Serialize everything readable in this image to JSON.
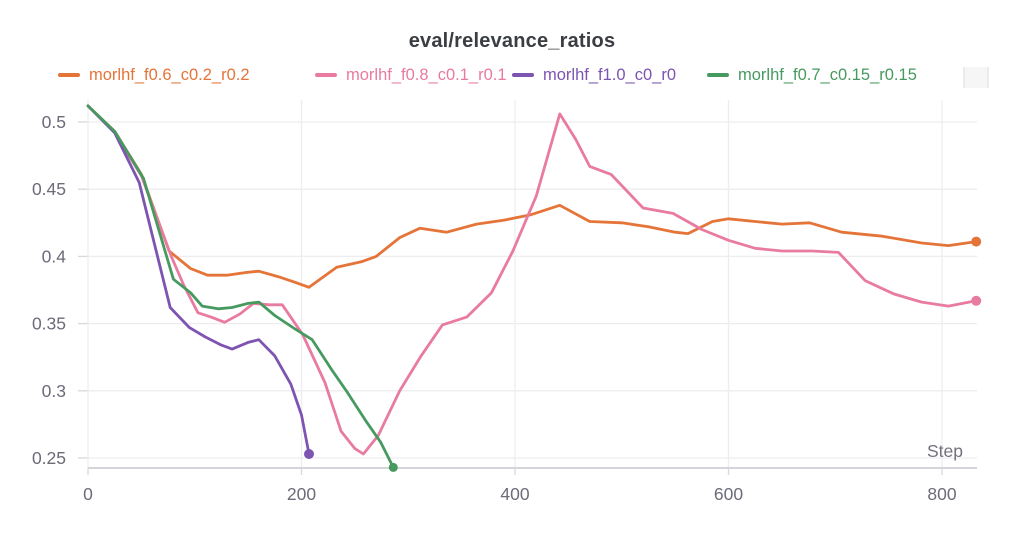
{
  "panel": {
    "title": "eval/relevance_ratios",
    "x_axis_label": "Step"
  },
  "axes": {
    "x_ticks": [
      0,
      200,
      400,
      600,
      800
    ],
    "y_ticks": [
      0.25,
      0.3,
      0.35,
      0.4,
      0.45,
      0.5
    ]
  },
  "colors": {
    "title_text": "#3a3d42",
    "tick_text": "#6b6c78",
    "axis_label_text": "#71727c",
    "gridline": "#ededf0",
    "tick_mark": "#d8d8dd",
    "axis_line": "#d4d4d9",
    "background": "#ffffff"
  },
  "chart_data": {
    "type": "line",
    "title": "eval/relevance_ratios",
    "xlabel": "Step",
    "ylabel": "",
    "xlim": [
      0,
      838
    ],
    "ylim": [
      0.2425,
      0.516
    ],
    "x_ticks": [
      0,
      200,
      400,
      600,
      800
    ],
    "y_ticks": [
      0.25,
      0.3,
      0.35,
      0.4,
      0.45,
      0.5
    ],
    "grid": true,
    "legend_position": "top",
    "series": [
      {
        "name": "morlhf_f0.6_c0.2_r0.2",
        "color": "#E57439",
        "end_dot": true,
        "points": [
          [
            0,
            0.512
          ],
          [
            25,
            0.493
          ],
          [
            50,
            0.461
          ],
          [
            76,
            0.404
          ],
          [
            96,
            0.391
          ],
          [
            112,
            0.386
          ],
          [
            130,
            0.386
          ],
          [
            148,
            0.388
          ],
          [
            160,
            0.389
          ],
          [
            178,
            0.385
          ],
          [
            193,
            0.381
          ],
          [
            207,
            0.377
          ],
          [
            233,
            0.392
          ],
          [
            256,
            0.396
          ],
          [
            270,
            0.4
          ],
          [
            292,
            0.414
          ],
          [
            311,
            0.421
          ],
          [
            336,
            0.418
          ],
          [
            364,
            0.424
          ],
          [
            390,
            0.427
          ],
          [
            415,
            0.431
          ],
          [
            442,
            0.438
          ],
          [
            470,
            0.426
          ],
          [
            500,
            0.425
          ],
          [
            525,
            0.422
          ],
          [
            550,
            0.418
          ],
          [
            562,
            0.417
          ],
          [
            585,
            0.426
          ],
          [
            600,
            0.428
          ],
          [
            625,
            0.426
          ],
          [
            650,
            0.424
          ],
          [
            676,
            0.425
          ],
          [
            706,
            0.418
          ],
          [
            744,
            0.415
          ],
          [
            781,
            0.41
          ],
          [
            806,
            0.408
          ],
          [
            832,
            0.411
          ]
        ]
      },
      {
        "name": "morlhf_f0.8_c0.1_r0.1",
        "color": "#E87B9F",
        "end_dot": true,
        "points": [
          [
            0,
            0.512
          ],
          [
            25,
            0.492
          ],
          [
            50,
            0.46
          ],
          [
            78,
            0.4
          ],
          [
            90,
            0.378
          ],
          [
            103,
            0.358
          ],
          [
            115,
            0.355
          ],
          [
            128,
            0.351
          ],
          [
            142,
            0.357
          ],
          [
            155,
            0.365
          ],
          [
            170,
            0.364
          ],
          [
            182,
            0.364
          ],
          [
            201,
            0.342
          ],
          [
            222,
            0.306
          ],
          [
            237,
            0.27
          ],
          [
            250,
            0.257
          ],
          [
            258,
            0.253
          ],
          [
            272,
            0.267
          ],
          [
            292,
            0.3
          ],
          [
            312,
            0.326
          ],
          [
            332,
            0.349
          ],
          [
            355,
            0.355
          ],
          [
            378,
            0.373
          ],
          [
            398,
            0.404
          ],
          [
            420,
            0.445
          ],
          [
            442,
            0.506
          ],
          [
            457,
            0.487
          ],
          [
            470,
            0.467
          ],
          [
            490,
            0.461
          ],
          [
            520,
            0.436
          ],
          [
            548,
            0.432
          ],
          [
            575,
            0.42
          ],
          [
            600,
            0.412
          ],
          [
            625,
            0.406
          ],
          [
            650,
            0.404
          ],
          [
            678,
            0.404
          ],
          [
            703,
            0.403
          ],
          [
            728,
            0.382
          ],
          [
            755,
            0.372
          ],
          [
            781,
            0.366
          ],
          [
            806,
            0.363
          ],
          [
            832,
            0.367
          ]
        ]
      },
      {
        "name": "morlhf_f1.0_c0_r0",
        "color": "#7D54B2",
        "end_dot": true,
        "points": [
          [
            0,
            0.512
          ],
          [
            25,
            0.492
          ],
          [
            48,
            0.455
          ],
          [
            77,
            0.362
          ],
          [
            95,
            0.347
          ],
          [
            110,
            0.34
          ],
          [
            125,
            0.334
          ],
          [
            135,
            0.331
          ],
          [
            150,
            0.336
          ],
          [
            160,
            0.338
          ],
          [
            175,
            0.326
          ],
          [
            190,
            0.305
          ],
          [
            200,
            0.282
          ],
          [
            207,
            0.253
          ]
        ]
      },
      {
        "name": "morlhf_f0.7_c0.15_r0.15",
        "color": "#479A5F",
        "end_dot": true,
        "points": [
          [
            0,
            0.512
          ],
          [
            25,
            0.493
          ],
          [
            52,
            0.458
          ],
          [
            80,
            0.383
          ],
          [
            96,
            0.373
          ],
          [
            107,
            0.363
          ],
          [
            122,
            0.361
          ],
          [
            135,
            0.362
          ],
          [
            150,
            0.365
          ],
          [
            160,
            0.366
          ],
          [
            175,
            0.356
          ],
          [
            194,
            0.346
          ],
          [
            210,
            0.338
          ],
          [
            228,
            0.316
          ],
          [
            242,
            0.3
          ],
          [
            260,
            0.278
          ],
          [
            274,
            0.262
          ],
          [
            286,
            0.243
          ]
        ]
      }
    ]
  }
}
